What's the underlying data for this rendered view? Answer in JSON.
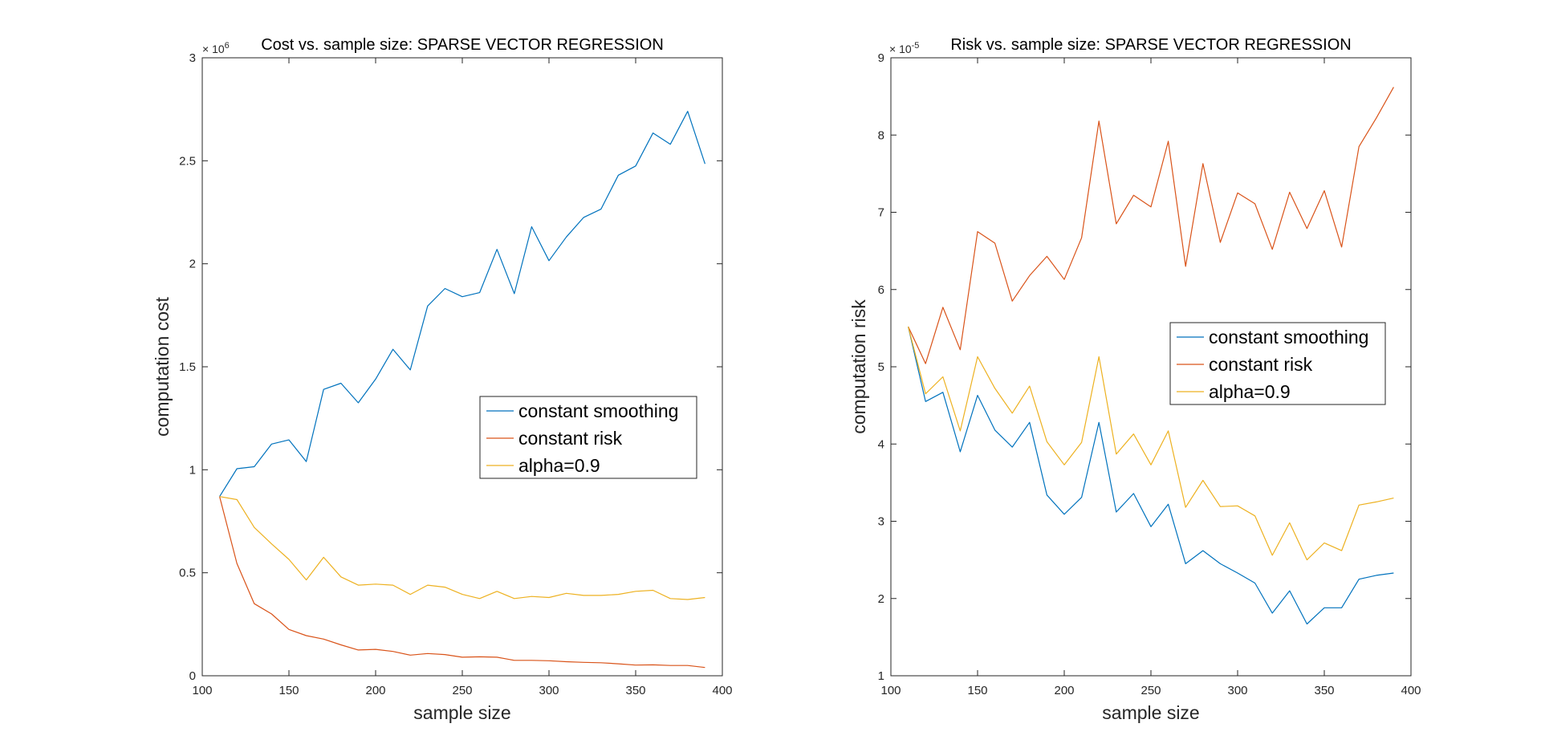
{
  "chart_data": [
    {
      "type": "line",
      "title": "Cost vs. sample size: SPARSE VECTOR REGRESSION",
      "xlabel": "sample size",
      "ylabel": "computation cost",
      "xlim": [
        100,
        400
      ],
      "ylim": [
        0,
        3000000
      ],
      "y_exponent_base": "× 10",
      "y_exponent": "6",
      "x_ticks": [
        100,
        150,
        200,
        250,
        300,
        350,
        400
      ],
      "x_tick_labels": [
        "100",
        "150",
        "200",
        "250",
        "300",
        "350",
        "400"
      ],
      "y_ticks": [
        0,
        500000,
        1000000,
        1500000,
        2000000,
        2500000,
        3000000
      ],
      "y_tick_labels": [
        "0",
        "0.5",
        "1",
        "1.5",
        "2",
        "2.5",
        "3"
      ],
      "grid": false,
      "legend_position": "center-right",
      "x": [
        110,
        120,
        130,
        140,
        150,
        160,
        170,
        180,
        190,
        200,
        210,
        220,
        230,
        240,
        250,
        260,
        270,
        280,
        290,
        300,
        310,
        320,
        330,
        340,
        350,
        360,
        370,
        380,
        390
      ],
      "series": [
        {
          "name": "constant smoothing",
          "color": "#0072BD",
          "values": [
            870000,
            1005000,
            1015000,
            1125000,
            1145000,
            1040000,
            1390000,
            1420000,
            1325000,
            1440000,
            1585000,
            1485000,
            1795000,
            1880000,
            1840000,
            1860000,
            2070000,
            1855000,
            2180000,
            2015000,
            2130000,
            2225000,
            2265000,
            2430000,
            2475000,
            2635000,
            2580000,
            2740000,
            2485000
          ]
        },
        {
          "name": "constant risk",
          "color": "#D95319",
          "values": [
            870000,
            545000,
            350000,
            300000,
            225000,
            195000,
            178000,
            150000,
            125000,
            128000,
            118000,
            100000,
            108000,
            103000,
            90000,
            92000,
            90000,
            75000,
            75000,
            73000,
            68000,
            65000,
            63000,
            58000,
            52000,
            53000,
            50000,
            50000,
            40000
          ]
        },
        {
          "name": "alpha=0.9",
          "color": "#EDB120",
          "values": [
            870000,
            855000,
            720000,
            640000,
            565000,
            465000,
            575000,
            480000,
            440000,
            445000,
            440000,
            395000,
            440000,
            430000,
            395000,
            375000,
            410000,
            375000,
            385000,
            380000,
            400000,
            390000,
            390000,
            395000,
            410000,
            415000,
            375000,
            370000,
            380000
          ]
        }
      ]
    },
    {
      "type": "line",
      "title": "Risk vs. sample size: SPARSE VECTOR REGRESSION",
      "xlabel": "sample size",
      "ylabel": "computation risk",
      "xlim": [
        100,
        400
      ],
      "ylim": [
        1e-05,
        9e-05
      ],
      "y_exponent_base": "× 10",
      "y_exponent": "-5",
      "x_ticks": [
        100,
        150,
        200,
        250,
        300,
        350,
        400
      ],
      "x_tick_labels": [
        "100",
        "150",
        "200",
        "250",
        "300",
        "350",
        "400"
      ],
      "y_ticks": [
        1e-05,
        2e-05,
        3e-05,
        4e-05,
        5e-05,
        6e-05,
        7e-05,
        8e-05,
        9e-05
      ],
      "y_tick_labels": [
        "1",
        "2",
        "3",
        "4",
        "5",
        "6",
        "7",
        "8",
        "9"
      ],
      "grid": false,
      "legend_position": "upper-right",
      "x": [
        110,
        120,
        130,
        140,
        150,
        160,
        170,
        180,
        190,
        200,
        210,
        220,
        230,
        240,
        250,
        260,
        270,
        280,
        290,
        300,
        310,
        320,
        330,
        340,
        350,
        360,
        370,
        380,
        390
      ],
      "series": [
        {
          "name": "constant smoothing",
          "color": "#0072BD",
          "values": [
            5.52e-05,
            4.55e-05,
            4.67e-05,
            3.9e-05,
            4.63e-05,
            4.18e-05,
            3.96e-05,
            4.28e-05,
            3.34e-05,
            3.09e-05,
            3.31e-05,
            4.28e-05,
            3.12e-05,
            3.36e-05,
            2.93e-05,
            3.22e-05,
            2.45e-05,
            2.62e-05,
            2.45e-05,
            2.33e-05,
            2.2e-05,
            1.81e-05,
            2.1e-05,
            1.67e-05,
            1.88e-05,
            1.88e-05,
            2.25e-05,
            2.3e-05,
            2.33e-05
          ]
        },
        {
          "name": "constant risk",
          "color": "#D95319",
          "values": [
            5.52e-05,
            5.04e-05,
            5.77e-05,
            5.22e-05,
            6.75e-05,
            6.6e-05,
            5.85e-05,
            6.18e-05,
            6.43e-05,
            6.13e-05,
            6.67e-05,
            8.18e-05,
            6.85e-05,
            7.22e-05,
            7.07e-05,
            7.92e-05,
            6.3e-05,
            7.63e-05,
            6.61e-05,
            7.25e-05,
            7.11e-05,
            6.52e-05,
            7.26e-05,
            6.79e-05,
            7.28e-05,
            6.55e-05,
            7.85e-05,
            8.22e-05,
            8.62e-05
          ]
        },
        {
          "name": "alpha=0.9",
          "color": "#EDB120",
          "values": [
            5.52e-05,
            4.65e-05,
            4.87e-05,
            4.17e-05,
            5.13e-05,
            4.72e-05,
            4.4e-05,
            4.75e-05,
            4.03e-05,
            3.73e-05,
            4.02e-05,
            5.13e-05,
            3.87e-05,
            4.13e-05,
            3.73e-05,
            4.17e-05,
            3.18e-05,
            3.53e-05,
            3.19e-05,
            3.2e-05,
            3.07e-05,
            2.56e-05,
            2.98e-05,
            2.5e-05,
            2.72e-05,
            2.62e-05,
            3.21e-05,
            3.25e-05,
            3.3e-05
          ]
        }
      ]
    }
  ]
}
